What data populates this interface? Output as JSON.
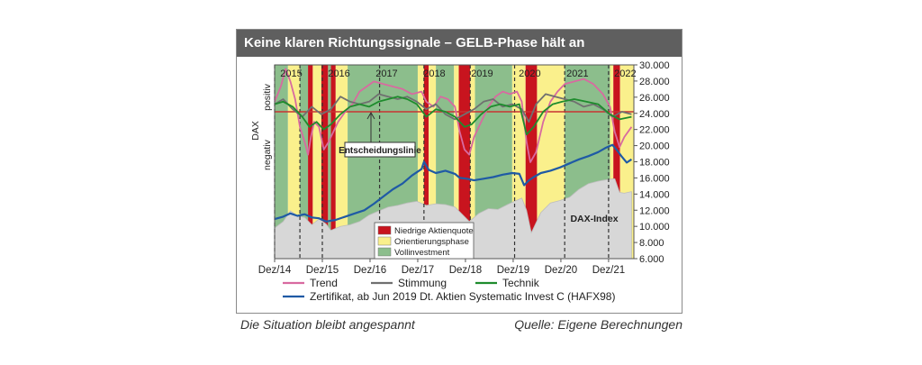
{
  "header": {
    "title": "Keine klaren Richtungssignale – GELB-Phase hält an"
  },
  "captions": {
    "left": "Die Situation bleibt angespannt",
    "right": "Quelle: Eigene Berechnungen"
  },
  "colors": {
    "red_phase": "#c8141e",
    "yellow_phase": "#faf08c",
    "green_phase": "#8cbe8c",
    "trend": "#d86aa0",
    "stimmung": "#707070",
    "technik": "#1e8c2d",
    "zertifikat": "#1f5aa5",
    "dax_area": "#d7d7d7",
    "decision_line": "#c83232"
  },
  "chart_data": {
    "type": "line",
    "title": "Keine klaren Richtungssignale – GELB-Phase hält an",
    "x_start": "2014-12",
    "x_end": "2022-06",
    "x_ticks": [
      "Dez/14",
      "Dez/15",
      "Dez/16",
      "Dez/17",
      "Dez/18",
      "Dez/19",
      "Dez/20",
      "Dez/21"
    ],
    "year_labels": [
      {
        "label": "2015",
        "t": 2015.0
      },
      {
        "label": "2016",
        "t": 2016.0
      },
      {
        "label": "2017",
        "t": 2017.0
      },
      {
        "label": "2018",
        "t": 2018.0
      },
      {
        "label": "2019",
        "t": 2019.0
      },
      {
        "label": "2020",
        "t": 2020.0
      },
      {
        "label": "2021",
        "t": 2021.0
      },
      {
        "label": "2022",
        "t": 2022.0
      }
    ],
    "y_right_ticks": [
      "30.000",
      "28.000",
      "26.000",
      "24.000",
      "22.000",
      "20.000",
      "18.000",
      "16.000",
      "14.000",
      "12.000",
      "10.000",
      "8.000",
      "6.000"
    ],
    "ylim_right": [
      6000,
      30000
    ],
    "y_left_label": "DAX",
    "y_left_upper": "positiv",
    "y_left_lower": "negativ",
    "decision_label": "Entscheidungslinie",
    "dax_index_label": "DAX-Index",
    "phases_legend": [
      {
        "label": "Niedrige Aktienquote",
        "color": "#c8141e"
      },
      {
        "label": "Orientierungsphase",
        "color": "#faf08c"
      },
      {
        "label": "Vollinvestment",
        "color": "#8cbe8c"
      }
    ],
    "phases": [
      {
        "from": 2014.92,
        "to": 2015.2,
        "phase": "green"
      },
      {
        "from": 2015.2,
        "to": 2015.45,
        "phase": "yellow"
      },
      {
        "from": 2015.45,
        "to": 2015.62,
        "phase": "green"
      },
      {
        "from": 2015.62,
        "to": 2015.72,
        "phase": "red"
      },
      {
        "from": 2015.72,
        "to": 2015.9,
        "phase": "yellow"
      },
      {
        "from": 2015.9,
        "to": 2016.04,
        "phase": "red"
      },
      {
        "from": 2016.04,
        "to": 2016.1,
        "phase": "green"
      },
      {
        "from": 2016.1,
        "to": 2016.2,
        "phase": "red"
      },
      {
        "from": 2016.2,
        "to": 2016.45,
        "phase": "yellow"
      },
      {
        "from": 2016.45,
        "to": 2017.92,
        "phase": "green"
      },
      {
        "from": 2017.92,
        "to": 2018.05,
        "phase": "yellow"
      },
      {
        "from": 2018.05,
        "to": 2018.15,
        "phase": "red"
      },
      {
        "from": 2018.15,
        "to": 2018.3,
        "phase": "yellow"
      },
      {
        "from": 2018.3,
        "to": 2018.68,
        "phase": "green"
      },
      {
        "from": 2018.68,
        "to": 2018.78,
        "phase": "yellow"
      },
      {
        "from": 2018.78,
        "to": 2019.02,
        "phase": "red"
      },
      {
        "from": 2019.02,
        "to": 2019.12,
        "phase": "yellow"
      },
      {
        "from": 2019.12,
        "to": 2019.9,
        "phase": "green"
      },
      {
        "from": 2019.9,
        "to": 2020.18,
        "phase": "yellow"
      },
      {
        "from": 2020.18,
        "to": 2020.42,
        "phase": "red"
      },
      {
        "from": 2020.42,
        "to": 2021.0,
        "phase": "yellow"
      },
      {
        "from": 2021.0,
        "to": 2021.95,
        "phase": "green"
      },
      {
        "from": 2021.95,
        "to": 2022.02,
        "phase": "yellow"
      },
      {
        "from": 2022.02,
        "to": 2022.16,
        "phase": "red"
      },
      {
        "from": 2022.16,
        "to": 2022.45,
        "phase": "yellow"
      }
    ],
    "signal_dates": [
      2014.92,
      2015.45,
      2015.92,
      2017.12,
      2018.05,
      2019.02,
      2019.95,
      2021.0,
      2021.92
    ],
    "series": [
      {
        "name": "Trend",
        "scale": "signal",
        "t": [
          2014.92,
          2015.05,
          2015.15,
          2015.25,
          2015.35,
          2015.45,
          2015.55,
          2015.62,
          2015.68,
          2015.75,
          2015.85,
          2015.95,
          2016.05,
          2016.15,
          2016.25,
          2016.4,
          2016.55,
          2016.7,
          2016.85,
          2017.0,
          2017.2,
          2017.4,
          2017.6,
          2017.8,
          2018.0,
          2018.1,
          2018.25,
          2018.4,
          2018.55,
          2018.7,
          2018.8,
          2018.9,
          2019.0,
          2019.1,
          2019.25,
          2019.4,
          2019.55,
          2019.7,
          2019.85,
          2020.0,
          2020.1,
          2020.2,
          2020.28,
          2020.4,
          2020.55,
          2020.7,
          2020.85,
          2021.0,
          2021.2,
          2021.4,
          2021.6,
          2021.8,
          2021.95,
          2022.05,
          2022.15,
          2022.25,
          2022.4
        ],
        "values": [
          0.2,
          0.5,
          0.85,
          0.6,
          0.25,
          -0.3,
          -0.6,
          -0.85,
          -0.5,
          -0.2,
          -0.3,
          -0.75,
          -0.6,
          -0.4,
          -0.2,
          0.0,
          0.15,
          0.4,
          0.5,
          0.6,
          0.55,
          0.5,
          0.45,
          0.35,
          0.4,
          0.2,
          0.1,
          0.3,
          0.25,
          0.1,
          -0.4,
          -0.75,
          -0.85,
          -0.5,
          -0.2,
          0.1,
          0.3,
          0.4,
          0.35,
          0.4,
          0.2,
          -0.6,
          -1.0,
          -0.8,
          -0.2,
          0.2,
          0.4,
          0.55,
          0.6,
          0.65,
          0.55,
          0.35,
          0.1,
          -0.4,
          -0.7,
          -0.5,
          -0.3
        ]
      },
      {
        "name": "Stimmung",
        "scale": "signal",
        "t": [
          2014.92,
          2015.1,
          2015.3,
          2015.5,
          2015.7,
          2015.9,
          2016.1,
          2016.3,
          2016.5,
          2016.7,
          2016.9,
          2017.1,
          2017.3,
          2017.5,
          2017.7,
          2017.9,
          2018.1,
          2018.3,
          2018.5,
          2018.7,
          2018.9,
          2019.1,
          2019.3,
          2019.5,
          2019.7,
          2019.9,
          2020.1,
          2020.25,
          2020.4,
          2020.6,
          2020.8,
          2021.0,
          2021.2,
          2021.4,
          2021.6,
          2021.8,
          2022.0,
          2022.2,
          2022.4
        ],
        "values": [
          0.15,
          0.25,
          0.05,
          -0.1,
          0.1,
          -0.05,
          0.05,
          0.3,
          0.2,
          0.15,
          0.2,
          0.35,
          0.3,
          0.25,
          0.3,
          0.2,
          0.05,
          0.15,
          -0.05,
          -0.15,
          -0.05,
          0.05,
          0.2,
          0.25,
          0.1,
          0.15,
          0.05,
          -0.2,
          0.15,
          0.35,
          0.3,
          0.25,
          0.2,
          0.1,
          0.15,
          0.05,
          -0.1,
          0.0,
          -0.05
        ]
      },
      {
        "name": "Technik",
        "scale": "signal",
        "t": [
          2014.92,
          2015.1,
          2015.3,
          2015.5,
          2015.65,
          2015.8,
          2015.95,
          2016.1,
          2016.3,
          2016.5,
          2016.7,
          2016.9,
          2017.1,
          2017.3,
          2017.5,
          2017.7,
          2017.9,
          2018.1,
          2018.3,
          2018.5,
          2018.7,
          2018.9,
          2019.05,
          2019.25,
          2019.45,
          2019.65,
          2019.85,
          2020.05,
          2020.2,
          2020.35,
          2020.55,
          2020.75,
          2020.95,
          2021.2,
          2021.45,
          2021.7,
          2021.95,
          2022.15,
          2022.4
        ],
        "values": [
          0.15,
          0.2,
          0.1,
          -0.1,
          -0.3,
          -0.2,
          -0.35,
          -0.25,
          -0.05,
          0.1,
          0.15,
          0.1,
          0.2,
          0.25,
          0.3,
          0.25,
          0.15,
          -0.1,
          0.05,
          0.0,
          -0.1,
          -0.3,
          -0.25,
          -0.05,
          0.1,
          0.15,
          0.1,
          0.15,
          -0.45,
          -0.3,
          0.0,
          0.15,
          0.2,
          0.25,
          0.2,
          0.15,
          -0.05,
          -0.15,
          -0.1
        ]
      },
      {
        "name": "Zertifikat, ab Jun 2019 Dt. Aktien Systematic Invest C (HAFX98)",
        "scale": "index",
        "t": [
          2014.92,
          2015.1,
          2015.25,
          2015.4,
          2015.55,
          2015.7,
          2015.85,
          2016.0,
          2016.2,
          2016.4,
          2016.6,
          2016.8,
          2017.0,
          2017.2,
          2017.4,
          2017.6,
          2017.8,
          2018.0,
          2018.05,
          2018.15,
          2018.3,
          2018.5,
          2018.7,
          2018.8,
          2018.95,
          2019.1,
          2019.3,
          2019.5,
          2019.7,
          2019.9,
          2020.05,
          2020.15,
          2020.25,
          2020.35,
          2020.5,
          2020.7,
          2020.9,
          2021.1,
          2021.3,
          2021.5,
          2021.7,
          2021.85,
          2022.0,
          2022.1,
          2022.2,
          2022.3,
          2022.4
        ],
        "values": [
          10900,
          11200,
          11600,
          11300,
          11500,
          11100,
          11000,
          10600,
          10800,
          11200,
          11600,
          12000,
          12800,
          13700,
          14600,
          15300,
          16300,
          17100,
          18000,
          17000,
          16600,
          16900,
          16500,
          16000,
          15900,
          15700,
          15900,
          16100,
          16400,
          16600,
          16500,
          15100,
          15700,
          16100,
          16600,
          16900,
          17300,
          17800,
          18300,
          18700,
          19200,
          19700,
          20100,
          19400,
          18600,
          17900,
          18300
        ]
      },
      {
        "name": "DAX-Index",
        "scale": "index",
        "area": true,
        "t": [
          2014.92,
          2015.1,
          2015.25,
          2015.4,
          2015.55,
          2015.7,
          2015.85,
          2016.0,
          2016.1,
          2016.3,
          2016.5,
          2016.7,
          2016.9,
          2017.1,
          2017.3,
          2017.5,
          2017.7,
          2017.9,
          2018.1,
          2018.3,
          2018.5,
          2018.7,
          2018.9,
          2019.0,
          2019.2,
          2019.4,
          2019.6,
          2019.8,
          2019.95,
          2020.1,
          2020.2,
          2020.3,
          2020.5,
          2020.7,
          2020.9,
          2021.1,
          2021.3,
          2021.5,
          2021.7,
          2021.9,
          2022.05,
          2022.15,
          2022.25,
          2022.4
        ],
        "values": [
          9800,
          10600,
          11900,
          11300,
          11100,
          10200,
          10900,
          10300,
          9500,
          10000,
          10200,
          10600,
          11400,
          11900,
          12400,
          12600,
          12900,
          13100,
          12600,
          12800,
          12700,
          12400,
          11200,
          10600,
          11600,
          12200,
          12100,
          12700,
          13100,
          13500,
          12000,
          9200,
          11700,
          12900,
          13200,
          13600,
          14600,
          15300,
          15600,
          15800,
          15900,
          14200,
          14100,
          14300
        ]
      }
    ],
    "legend": [
      {
        "label": "Trend",
        "color": "#d86aa0"
      },
      {
        "label": "Stimmung",
        "color": "#707070"
      },
      {
        "label": "Technik",
        "color": "#1e8c2d"
      },
      {
        "label": "Zertifikat, ab Jun 2019 Dt. Aktien Systematic Invest C (HAFX98)",
        "color": "#1f5aa5"
      }
    ]
  }
}
